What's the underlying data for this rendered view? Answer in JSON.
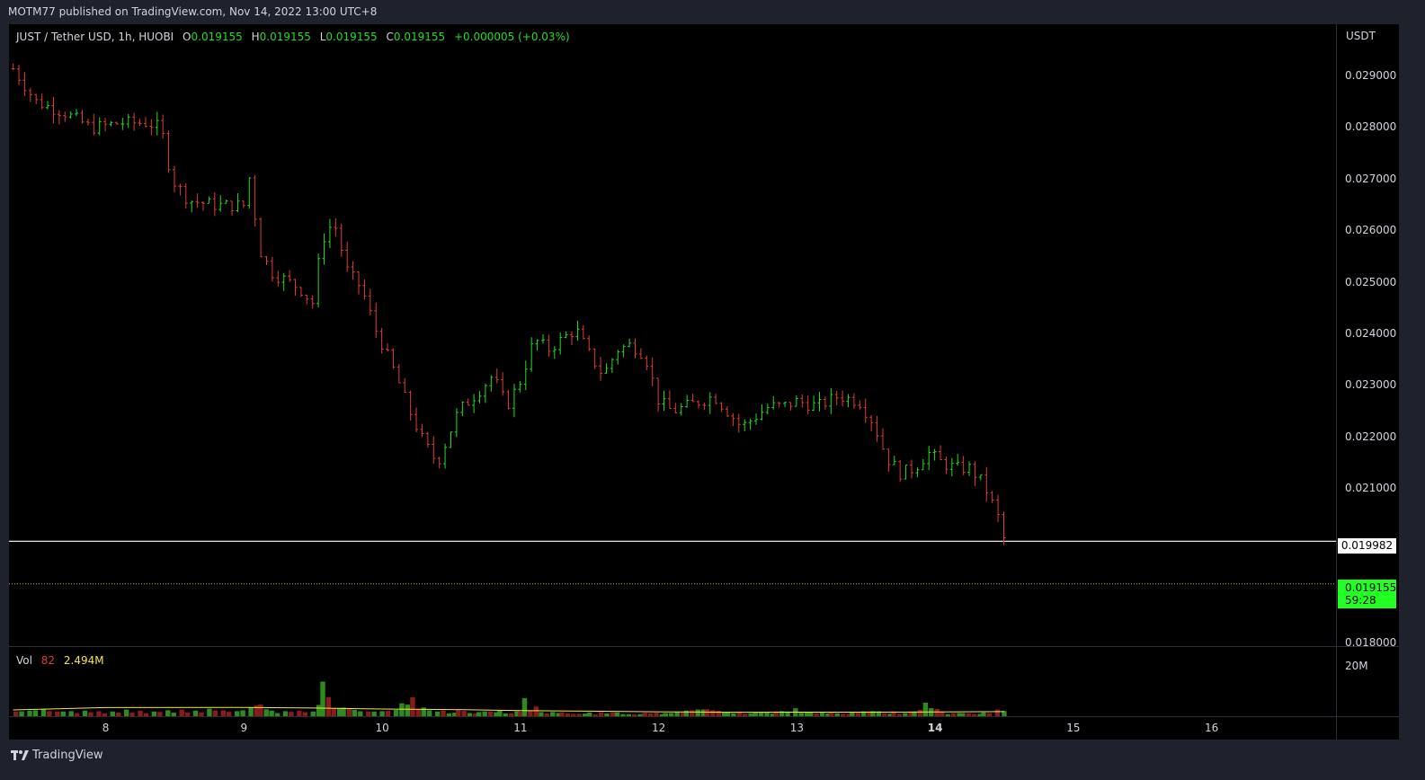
{
  "header": {
    "published": "MOTM77 published on TradingView.com, Nov 14, 2022 13:00 UTC+8"
  },
  "legend": {
    "symbol": "JUST / Tether USD, 1h, HUOBI",
    "o_label": "O",
    "o": "0.019155",
    "h_label": "H",
    "h": "0.019155",
    "l_label": "L",
    "l": "0.019155",
    "c_label": "C",
    "c": "0.019155",
    "change": "+0.000005 (+0.03%)"
  },
  "volume_legend": {
    "label": "Vol",
    "length": "82",
    "value": "2.494M"
  },
  "axis": {
    "currency": "USDT",
    "vol_tick": "20M"
  },
  "tags": {
    "line_price": "0.019982",
    "last_price": "0.019155",
    "countdown": "59:28"
  },
  "footer": {
    "brand": "TradingView"
  },
  "colors": {
    "up": "#22dd22",
    "down": "#e03c31",
    "ma": "#f5e54a",
    "background": "#000000"
  },
  "chart_data": {
    "type": "candlestick",
    "title": "JUST / Tether USD, 1h, HUOBI",
    "y_ticks": [
      "0.018000",
      "0.021000",
      "0.022000",
      "0.023000",
      "0.024000",
      "0.025000",
      "0.026000",
      "0.027000",
      "0.028000",
      "0.029000"
    ],
    "x_ticks": [
      "8",
      "9",
      "10",
      "11",
      "12",
      "13",
      "14",
      "15",
      "16"
    ],
    "ylim": [
      0.018,
      0.0297
    ],
    "x_days_range": [
      7.3,
      16.9
    ],
    "horizontal_line": 0.019982,
    "last_price_line": 0.019155,
    "price_path": [
      [
        7.33,
        0.02915
      ],
      [
        7.5,
        0.0285
      ],
      [
        7.7,
        0.0283
      ],
      [
        7.9,
        0.028
      ],
      [
        8.1,
        0.0281
      ],
      [
        8.3,
        0.0281
      ],
      [
        8.4,
        0.028
      ],
      [
        8.48,
        0.027
      ],
      [
        8.6,
        0.0266
      ],
      [
        8.8,
        0.0265
      ],
      [
        9.0,
        0.0265
      ],
      [
        9.05,
        0.0272
      ],
      [
        9.1,
        0.0257
      ],
      [
        9.2,
        0.0252
      ],
      [
        9.4,
        0.0249
      ],
      [
        9.5,
        0.0246
      ],
      [
        9.56,
        0.0258
      ],
      [
        9.65,
        0.0262
      ],
      [
        9.75,
        0.0252
      ],
      [
        9.85,
        0.0249
      ],
      [
        9.95,
        0.0241
      ],
      [
        10.1,
        0.0232
      ],
      [
        10.2,
        0.0225
      ],
      [
        10.3,
        0.0219
      ],
      [
        10.4,
        0.0215
      ],
      [
        10.55,
        0.0225
      ],
      [
        10.7,
        0.0229
      ],
      [
        10.8,
        0.0232
      ],
      [
        10.9,
        0.0226
      ],
      [
        11.0,
        0.0231
      ],
      [
        11.1,
        0.0239
      ],
      [
        11.2,
        0.0237
      ],
      [
        11.3,
        0.0239
      ],
      [
        11.4,
        0.0241
      ],
      [
        11.5,
        0.0236
      ],
      [
        11.6,
        0.0232
      ],
      [
        11.7,
        0.0237
      ],
      [
        11.8,
        0.0238
      ],
      [
        11.9,
        0.0236
      ],
      [
        12.0,
        0.0227
      ],
      [
        12.1,
        0.0225
      ],
      [
        12.2,
        0.0226
      ],
      [
        12.3,
        0.0227
      ],
      [
        12.4,
        0.0228
      ],
      [
        12.5,
        0.0225
      ],
      [
        12.6,
        0.0222
      ],
      [
        12.7,
        0.0224
      ],
      [
        12.8,
        0.0226
      ],
      [
        12.9,
        0.0226
      ],
      [
        13.0,
        0.0227
      ],
      [
        13.15,
        0.0226
      ],
      [
        13.3,
        0.0228
      ],
      [
        13.45,
        0.0227
      ],
      [
        13.55,
        0.0223
      ],
      [
        13.65,
        0.0216
      ],
      [
        13.75,
        0.0213
      ],
      [
        13.85,
        0.0214
      ],
      [
        13.95,
        0.0217
      ],
      [
        14.05,
        0.0215
      ],
      [
        14.15,
        0.0214
      ],
      [
        14.25,
        0.0214
      ],
      [
        14.35,
        0.0211
      ],
      [
        14.45,
        0.0205
      ],
      [
        14.5,
        0.02
      ],
      [
        14.52,
        0.019155
      ]
    ],
    "volume_ylim": [
      0,
      40000000
    ],
    "volume_bars": [
      [
        7.35,
        3000000
      ],
      [
        7.45,
        3500000
      ],
      [
        7.55,
        4500000
      ],
      [
        7.65,
        3000000
      ],
      [
        7.75,
        3200000
      ],
      [
        7.85,
        3500000
      ],
      [
        7.95,
        3200000
      ],
      [
        8.05,
        3000000
      ],
      [
        8.15,
        4200000
      ],
      [
        8.25,
        3500000
      ],
      [
        8.35,
        3000000
      ],
      [
        8.45,
        3800000
      ],
      [
        8.55,
        4200000
      ],
      [
        8.65,
        3500000
      ],
      [
        8.75,
        4800000
      ],
      [
        8.85,
        3700000
      ],
      [
        8.95,
        3200000
      ],
      [
        9.05,
        5500000
      ],
      [
        9.12,
        7500000
      ],
      [
        9.2,
        3500000
      ],
      [
        9.3,
        3200000
      ],
      [
        9.4,
        3500000
      ],
      [
        9.5,
        3000000
      ],
      [
        9.57,
        22000000
      ],
      [
        9.65,
        5200000
      ],
      [
        9.72,
        5500000
      ],
      [
        9.8,
        4000000
      ],
      [
        9.9,
        3000000
      ],
      [
        10.0,
        3200000
      ],
      [
        10.1,
        4000000
      ],
      [
        10.22,
        12000000
      ],
      [
        10.3,
        5500000
      ],
      [
        10.4,
        3000000
      ],
      [
        10.55,
        3800000
      ],
      [
        10.7,
        2600000
      ],
      [
        10.85,
        3500000
      ],
      [
        11.0,
        2800000
      ],
      [
        11.03,
        11500000
      ],
      [
        11.15,
        2600000
      ],
      [
        11.3,
        2500000
      ],
      [
        11.5,
        2400000
      ],
      [
        11.7,
        2400000
      ],
      [
        11.9,
        2200000
      ],
      [
        12.05,
        2000000
      ],
      [
        12.2,
        3500000
      ],
      [
        12.35,
        4500000
      ],
      [
        12.5,
        2800000
      ],
      [
        12.7,
        2600000
      ],
      [
        12.85,
        3000000
      ],
      [
        12.99,
        5000000
      ],
      [
        13.1,
        2300000
      ],
      [
        13.25,
        2400000
      ],
      [
        13.4,
        2600000
      ],
      [
        13.55,
        3200000
      ],
      [
        13.7,
        3000000
      ],
      [
        13.85,
        3000000
      ],
      [
        13.93,
        8600000
      ],
      [
        14.05,
        3000000
      ],
      [
        14.2,
        2000000
      ],
      [
        14.35,
        2400000
      ],
      [
        14.45,
        4200000
      ],
      [
        14.5,
        3300000
      ]
    ],
    "volume_ma": [
      [
        7.33,
        4000000
      ],
      [
        8.0,
        5500000
      ],
      [
        9.0,
        5600000
      ],
      [
        9.5,
        5200000
      ],
      [
        10.0,
        4600000
      ],
      [
        10.5,
        4200000
      ],
      [
        11.0,
        3600000
      ],
      [
        11.5,
        3200000
      ],
      [
        12.0,
        2800000
      ],
      [
        12.5,
        2500000
      ],
      [
        13.0,
        2600000
      ],
      [
        13.5,
        2600000
      ],
      [
        14.0,
        2700000
      ],
      [
        14.5,
        2900000
      ]
    ]
  }
}
